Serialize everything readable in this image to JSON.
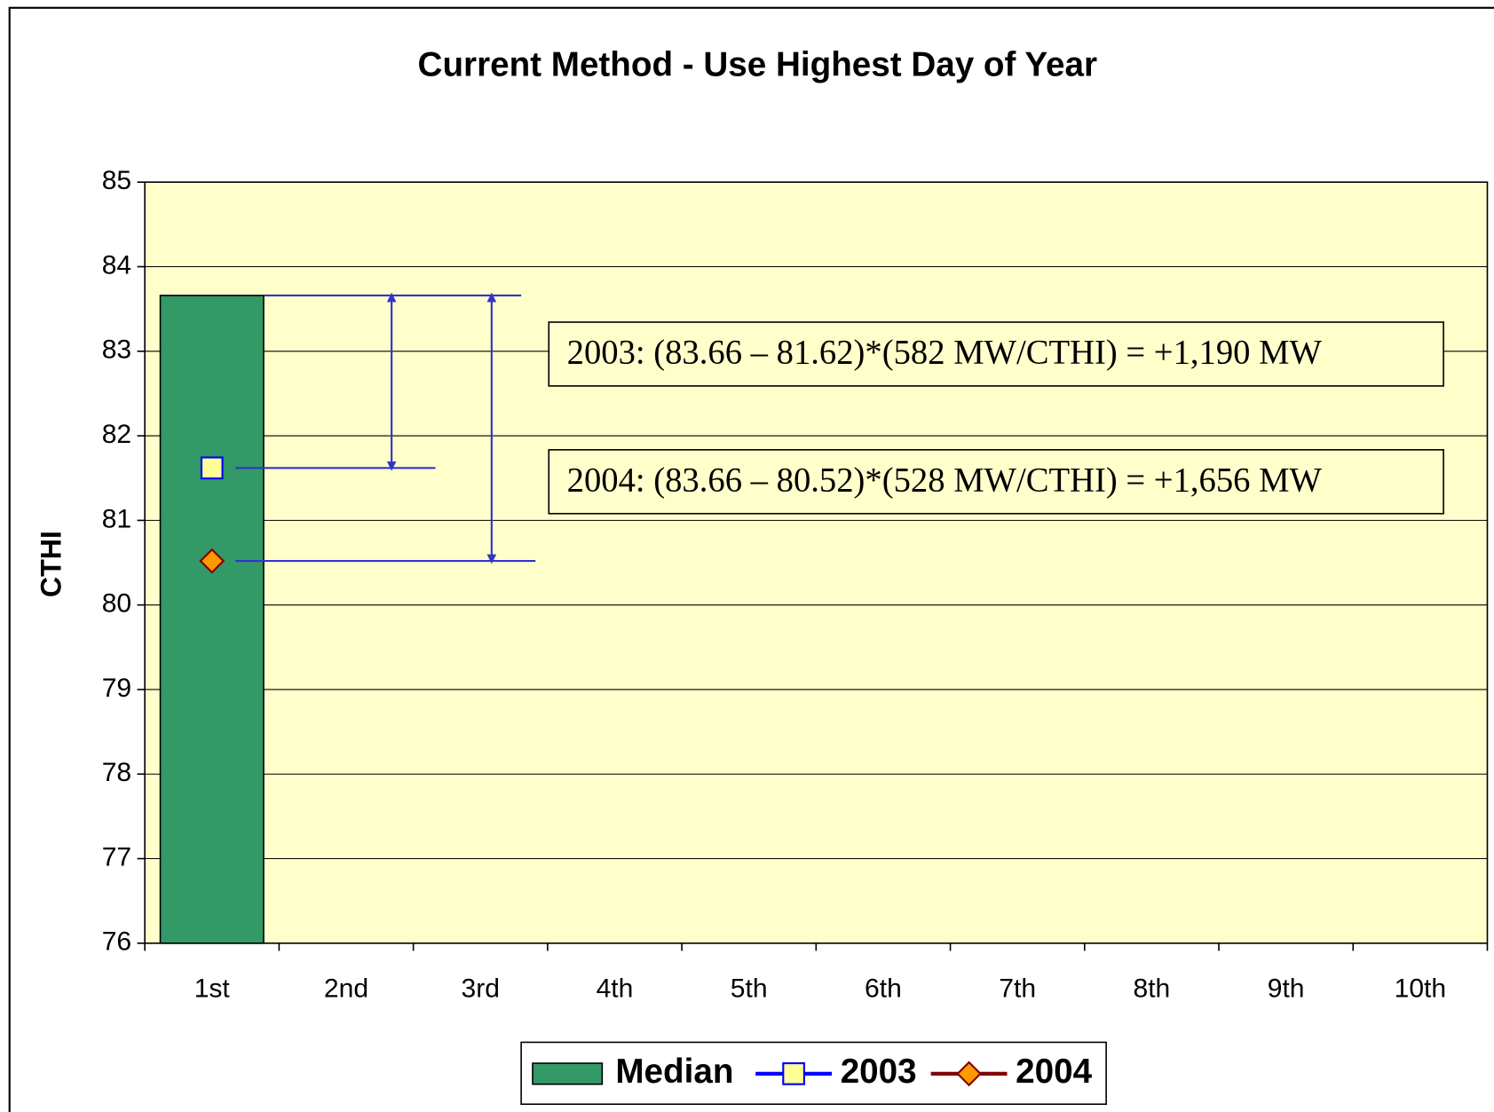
{
  "chart_data": {
    "type": "bar",
    "title": "Current Method - Use Highest Day of Year",
    "y_label": "CTHI",
    "categories": [
      "1st",
      "2nd",
      "3rd",
      "4th",
      "5th",
      "6th",
      "7th",
      "8th",
      "9th",
      "10th"
    ],
    "series": [
      {
        "name": "Median",
        "type": "bar",
        "color": "#339966",
        "values": [
          83.66,
          null,
          null,
          null,
          null,
          null,
          null,
          null,
          null,
          null
        ]
      },
      {
        "name": "2003",
        "type": "line",
        "color": "#0000ff",
        "marker": "square",
        "marker_fill": "#ffff99",
        "values": [
          81.62,
          null,
          null,
          null,
          null,
          null,
          null,
          null,
          null,
          null
        ]
      },
      {
        "name": "2004",
        "type": "line",
        "color": "#800000",
        "marker": "diamond",
        "marker_fill": "#ff9900",
        "values": [
          80.52,
          null,
          null,
          null,
          null,
          null,
          null,
          null,
          null,
          null
        ]
      }
    ],
    "annotations": [
      "2003: (83.66 – 81.62)*(582 MW/CTHI) = +1,190 MW",
      "2004: (83.66 – 80.52)*(528 MW/CTHI) = +1,656 MW"
    ],
    "ylim": [
      76,
      85
    ],
    "yticks": [
      76,
      77,
      78,
      79,
      80,
      81,
      82,
      83,
      84,
      85
    ],
    "grid": true,
    "plot_background": "#ffffcc",
    "legend": "bottom"
  }
}
